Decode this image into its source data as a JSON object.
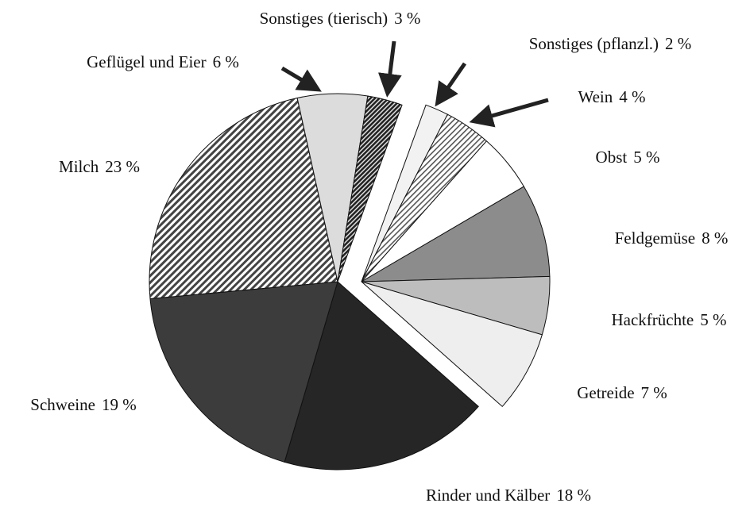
{
  "chart_data": {
    "type": "pie",
    "categories": [
      "Rinder und Kälber",
      "Schweine",
      "Milch",
      "Geflügel und Eier",
      "Sonstiges (tierisch)",
      "Sonstiges (pflanzl.)",
      "Wein",
      "Obst",
      "Feldgemüse",
      "Hackfrüchte",
      "Getreide"
    ],
    "values": [
      18,
      19,
      23,
      6,
      3,
      2,
      4,
      5,
      8,
      5,
      7
    ],
    "value_labels": [
      "18 %",
      "19 %",
      "23 %",
      "6 %",
      "3 %",
      "2 %",
      "4 %",
      "5 %",
      "8 %",
      "5 %",
      "7 %"
    ],
    "colors": [
      "#262626",
      "#3c3c3c",
      "#555555",
      "#dcdcdc",
      "#303030",
      "#f2f2f2",
      "#aaaaaa",
      "#ffffff",
      "#8c8c8c",
      "#bdbdbd",
      "#eeeeee"
    ]
  }
}
